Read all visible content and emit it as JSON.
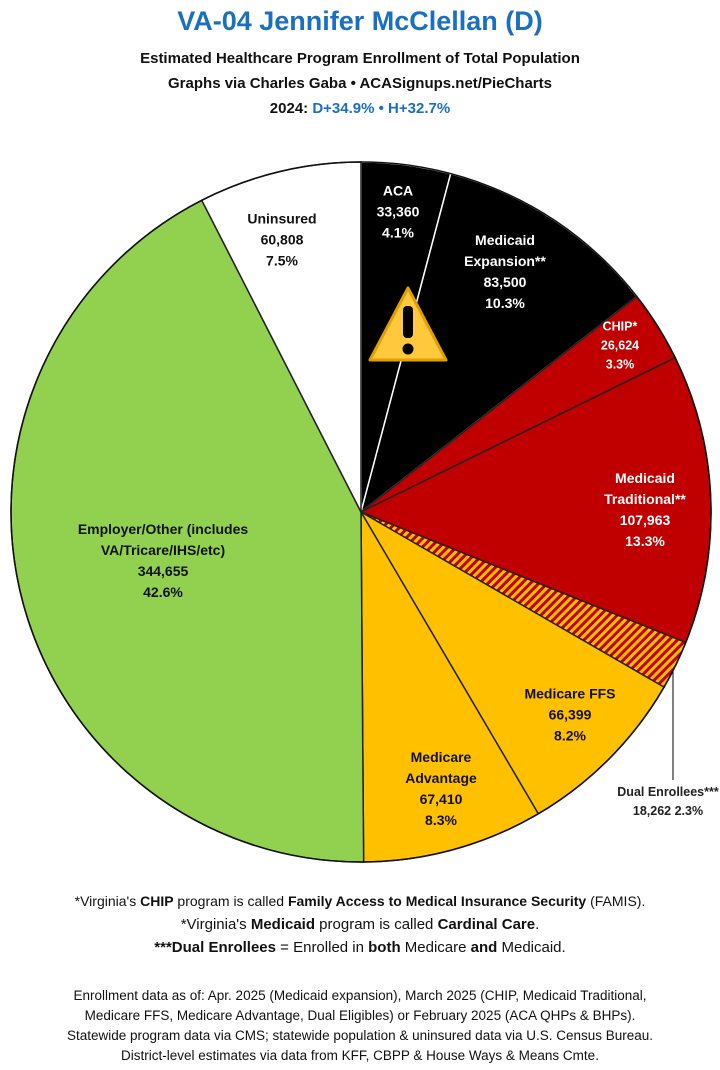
{
  "chart_data": {
    "type": "pie",
    "title": "VA-04 Jennifer McClellan (D)",
    "subtitle": [
      "Estimated Healthcare Program Enrollment of Total Population",
      "Graphs via Charles Gaba  •  ACASignups.net/PieCharts"
    ],
    "year_label": "2024:",
    "partisan_lean": "D+34.9%  •  H+32.7%",
    "categories": [
      "ACA",
      "Medicaid Expansion**",
      "CHIP*",
      "Medicaid Traditional**",
      "Dual Enrollees***",
      "Medicare FFS",
      "Medicare Advantage",
      "Employer/Other (includes VA/Tricare/IHS/etc)",
      "Uninsured"
    ],
    "values": [
      33360,
      83500,
      26624,
      107963,
      18262,
      66399,
      67410,
      344655,
      60808
    ],
    "value_labels": [
      "33,360",
      "83,500",
      "26,624",
      "107,963",
      "18,262",
      "66,399",
      "67,410",
      "344,655",
      "60,808"
    ],
    "percentages": [
      4.1,
      10.3,
      3.3,
      13.3,
      2.3,
      8.2,
      8.3,
      42.6,
      7.5
    ],
    "percentage_labels": [
      "4.1%",
      "10.3%",
      "3.3%",
      "13.3%",
      "2.3%",
      "8.2%",
      "8.3%",
      "42.6%",
      "7.5%"
    ],
    "colors": [
      "#000000",
      "#000000",
      "#c00000",
      "#c00000",
      "#ffc000",
      "#ffc000",
      "#ffc000",
      "#92d050",
      "#ffffff"
    ],
    "hatched": [
      false,
      false,
      false,
      false,
      true,
      false,
      false,
      false,
      false
    ],
    "footnotes": [
      [
        {
          "text": "*Virginia's ",
          "bold": false
        },
        {
          "text": "CHIP",
          "bold": true
        },
        {
          "text": " program is called ",
          "bold": false
        },
        {
          "text": "Family Access to Medical Insurance Security",
          "bold": true
        },
        {
          "text": " (FAMIS).",
          "bold": false
        }
      ],
      [
        {
          "text": "*Virginia's ",
          "bold": false
        },
        {
          "text": "Medicaid",
          "bold": true
        },
        {
          "text": " program is called ",
          "bold": false
        },
        {
          "text": "Cardinal Care",
          "bold": true
        },
        {
          "text": ".",
          "bold": false
        }
      ],
      [
        {
          "text": "***Dual Enrollees",
          "bold": true
        },
        {
          "text": " = Enrolled in ",
          "bold": false
        },
        {
          "text": "both",
          "bold": true
        },
        {
          "text": " Medicare ",
          "bold": false
        },
        {
          "text": "and",
          "bold": true
        },
        {
          "text": " Medicaid.",
          "bold": false
        }
      ]
    ],
    "sources": [
      "Enrollment data as of: Apr. 2025 (Medicaid expansion), March 2025 (CHIP, Medicaid Traditional,",
      "Medicare FFS, Medicare Advantage, Dual Eligibles) or February 2025 (ACA QHPs & BHPs).",
      "Statewide program data via CMS; statewide population & uninsured data via U.S. Census Bureau.",
      "District-level estimates via data from KFF, CBPP & House Ways & Means Cmte."
    ]
  }
}
